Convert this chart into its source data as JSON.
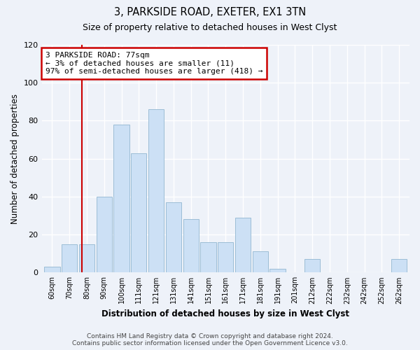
{
  "title": "3, PARKSIDE ROAD, EXETER, EX1 3TN",
  "subtitle": "Size of property relative to detached houses in West Clyst",
  "xlabel": "Distribution of detached houses by size in West Clyst",
  "ylabel": "Number of detached properties",
  "bar_labels": [
    "60sqm",
    "70sqm",
    "80sqm",
    "90sqm",
    "100sqm",
    "111sqm",
    "121sqm",
    "131sqm",
    "141sqm",
    "151sqm",
    "161sqm",
    "171sqm",
    "181sqm",
    "191sqm",
    "201sqm",
    "212sqm",
    "222sqm",
    "232sqm",
    "242sqm",
    "252sqm",
    "262sqm"
  ],
  "bar_values": [
    3,
    15,
    15,
    40,
    78,
    63,
    86,
    37,
    28,
    16,
    16,
    29,
    11,
    2,
    0,
    7,
    0,
    0,
    0,
    0,
    7
  ],
  "bar_color": "#cce0f5",
  "bar_edge_color": "#9bbdd6",
  "annotation_label": "3 PARKSIDE ROAD: 77sqm",
  "annotation_line1": "← 3% of detached houses are smaller (11)",
  "annotation_line2": "97% of semi-detached houses are larger (418) →",
  "annotation_box_color": "#ffffff",
  "annotation_box_edge": "#cc0000",
  "vline_color": "#cc0000",
  "ylim": [
    0,
    120
  ],
  "yticks": [
    0,
    20,
    40,
    60,
    80,
    100,
    120
  ],
  "footer1": "Contains HM Land Registry data © Crown copyright and database right 2024.",
  "footer2": "Contains public sector information licensed under the Open Government Licence v3.0.",
  "bg_color": "#eef2f9",
  "grid_color": "#ffffff",
  "vline_bar_index": 1.7
}
